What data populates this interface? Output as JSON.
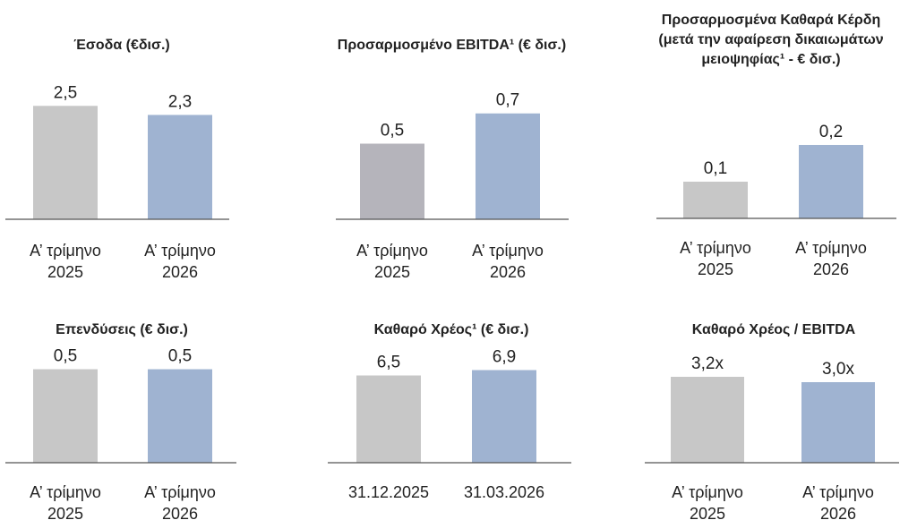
{
  "colors": {
    "bar_prev": "#c7c7c7",
    "bar_curr": "#9fb3d1",
    "bar_prev_alt": "#b5b4bb",
    "axis": "#555555"
  },
  "chart_data": [
    {
      "type": "bar",
      "title": [
        "Έσοδα (€δισ.)"
      ],
      "categories": [
        [
          "Α’ τρίμηνο",
          "2025"
        ],
        [
          "Α’ τρίμηνο",
          "2026"
        ]
      ],
      "values": [
        2.5,
        2.3
      ],
      "value_labels": [
        "2,5",
        "2,3"
      ],
      "ylim": [
        0,
        2.9
      ]
    },
    {
      "type": "bar",
      "title": [
        "Προσαρμοσμένο EBITDA¹ (€ δισ.)"
      ],
      "categories": [
        [
          "Α’ τρίμηνο",
          "2025"
        ],
        [
          "Α’ τρίμηνο",
          "2026"
        ]
      ],
      "values": [
        0.5,
        0.7
      ],
      "value_labels": [
        "0,5",
        "0,7"
      ],
      "ylim": [
        0,
        0.87
      ]
    },
    {
      "type": "bar",
      "title": [
        "Προσαρμοσμένα Καθαρά Κέρδη",
        "(μετά την αφαίρεση δικαιωμάτων",
        "μειοψηφίας¹ - € δισ.)"
      ],
      "categories": [
        [
          "Α’ τρίμηνο",
          "2025"
        ],
        [
          "Α’ τρίμηνο",
          "2026"
        ]
      ],
      "values": [
        0.1,
        0.2
      ],
      "value_labels": [
        "0,1",
        "0,2"
      ],
      "ylim": [
        0,
        0.356
      ]
    },
    {
      "type": "bar",
      "title": [
        "Επενδύσεις (€ δισ.)"
      ],
      "categories": [
        [
          "Α’ τρίμηνο",
          "2025"
        ],
        [
          "Α’ τρίμηνο",
          "2026"
        ]
      ],
      "values": [
        0.5,
        0.5
      ],
      "value_labels": [
        "0,5",
        "0,5"
      ],
      "ylim": [
        0,
        0.56
      ]
    },
    {
      "type": "bar",
      "title": [
        "Καθαρό Χρέος¹ (€ δισ.)"
      ],
      "categories": [
        [
          "31.12.2025"
        ],
        [
          "31.03.2026"
        ]
      ],
      "values": [
        6.5,
        6.9
      ],
      "value_labels": [
        "6,5",
        "6,9"
      ],
      "ylim": [
        0,
        7.8
      ]
    },
    {
      "type": "bar",
      "title": [
        "Καθαρό Χρέος / EBITDA"
      ],
      "categories": [
        [
          "Α’ τρίμηνο",
          "2025"
        ],
        [
          "Α’ τρίμηνο",
          "2026"
        ]
      ],
      "values": [
        3.2,
        3.0
      ],
      "value_labels": [
        "3,2x",
        "3,0x"
      ],
      "ylim": [
        0,
        3.9
      ]
    }
  ]
}
